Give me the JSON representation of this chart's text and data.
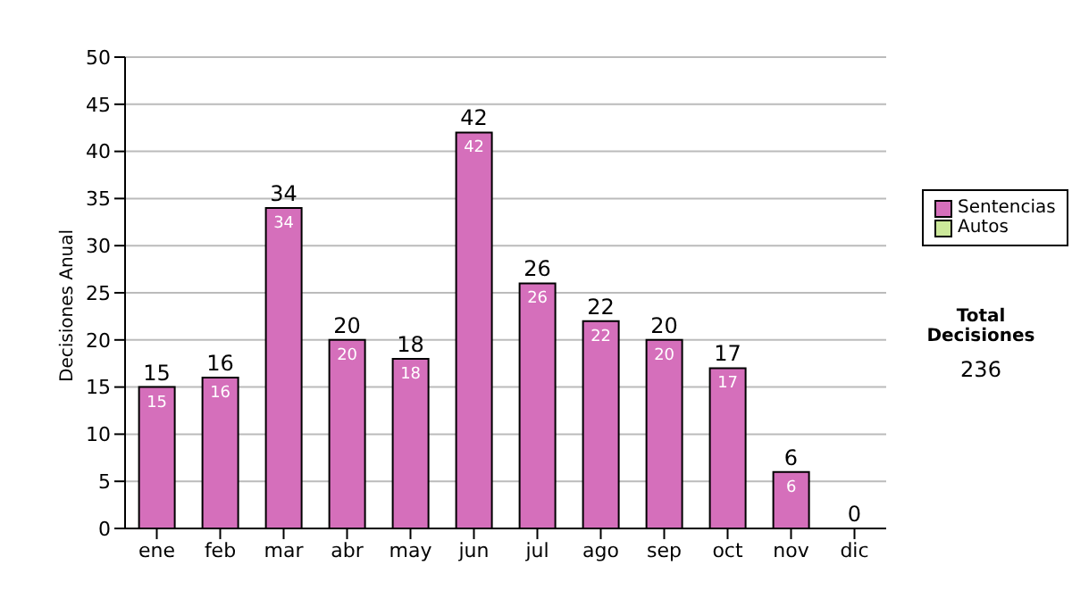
{
  "chart_data": {
    "type": "bar",
    "stacked": true,
    "ylabel": "Decisiones Anual",
    "categories": [
      "ene",
      "feb",
      "mar",
      "abr",
      "may",
      "jun",
      "jul",
      "ago",
      "sep",
      "oct",
      "nov",
      "dic"
    ],
    "series": [
      {
        "name": "Sentencias",
        "color": "#d56fbb",
        "values": [
          15,
          16,
          34,
          20,
          18,
          42,
          26,
          22,
          20,
          17,
          6,
          0
        ],
        "value_labels": [
          "15",
          "16",
          "34",
          "20",
          "18",
          "42",
          "26",
          "22",
          "20",
          "17",
          "6",
          null
        ]
      },
      {
        "name": "Autos",
        "color": "#cce89a",
        "values": [
          0,
          0,
          0,
          0,
          0,
          0,
          0,
          0,
          0,
          0,
          0,
          0
        ]
      }
    ],
    "totals": [
      "15",
      "16",
      "34",
      "20",
      "18",
      "42",
      "26",
      "22",
      "20",
      "17",
      "6",
      "0"
    ],
    "ylim": [
      0,
      50
    ],
    "yticks": [
      0,
      5,
      10,
      15,
      20,
      25,
      30,
      35,
      40,
      45,
      50
    ],
    "grid": "y",
    "legend": "right",
    "annotations": [
      "Total Decisiones",
      "236"
    ]
  }
}
